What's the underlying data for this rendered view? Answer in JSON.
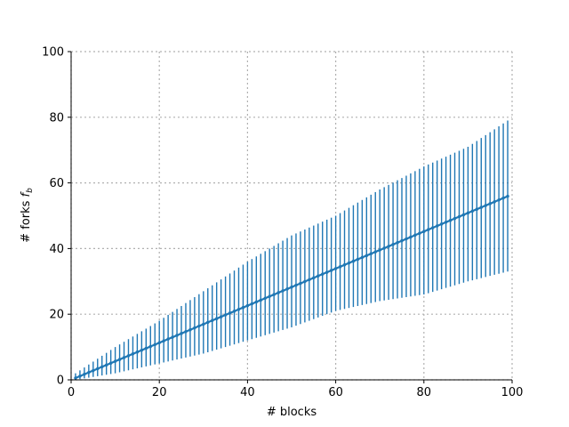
{
  "chart_data": {
    "type": "line",
    "title": "",
    "xlabel": "# blocks",
    "ylabel_main": "# forks ",
    "ylabel_symbol": "f",
    "ylabel_subscript": "b",
    "xlim": [
      0,
      100
    ],
    "ylim": [
      0,
      100
    ],
    "xticks": [
      0,
      20,
      40,
      60,
      80,
      100
    ],
    "yticks": [
      0,
      20,
      40,
      60,
      80,
      100
    ],
    "grid": true,
    "series_color": "#1f77b4",
    "x_start": 1,
    "x_end": 99,
    "mean_slope": 0.565,
    "lower_anchors": [
      [
        1,
        0
      ],
      [
        10,
        2
      ],
      [
        20,
        5
      ],
      [
        30,
        8
      ],
      [
        40,
        12
      ],
      [
        50,
        16
      ],
      [
        60,
        21
      ],
      [
        70,
        24
      ],
      [
        80,
        26
      ],
      [
        90,
        30
      ],
      [
        99,
        33
      ]
    ],
    "upper_anchors": [
      [
        1,
        2
      ],
      [
        10,
        10
      ],
      [
        20,
        18
      ],
      [
        30,
        27
      ],
      [
        40,
        36
      ],
      [
        50,
        44
      ],
      [
        60,
        50
      ],
      [
        70,
        58
      ],
      [
        80,
        65
      ],
      [
        90,
        71
      ],
      [
        99,
        79
      ]
    ]
  }
}
